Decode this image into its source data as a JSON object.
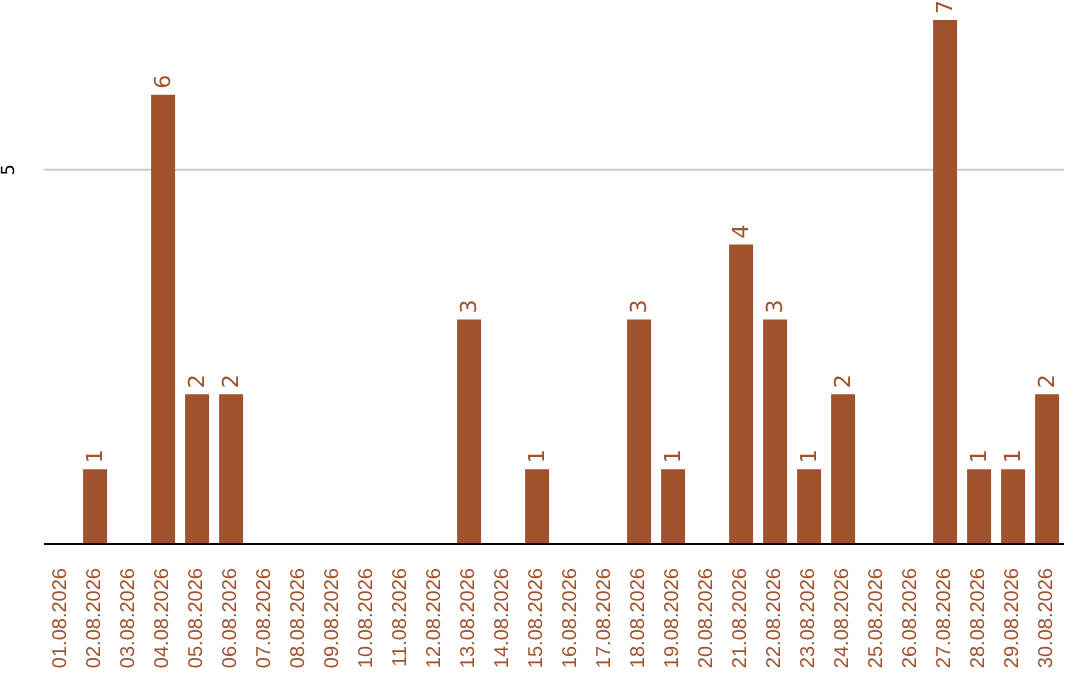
{
  "chart_data": {
    "type": "bar",
    "categories": [
      "01.08.2026",
      "02.08.2026",
      "03.08.2026",
      "04.08.2026",
      "05.08.2026",
      "06.08.2026",
      "07.08.2026",
      "08.08.2026",
      "09.08.2026",
      "10.08.2026",
      "11.08.2026",
      "12.08.2026",
      "13.08.2026",
      "14.08.2026",
      "15.08.2026",
      "16.08.2026",
      "17.08.2026",
      "18.08.2026",
      "19.08.2026",
      "20.08.2026",
      "21.08.2026",
      "22.08.2026",
      "23.08.2026",
      "24.08.2026",
      "25.08.2026",
      "26.08.2026",
      "27.08.2026",
      "28.08.2026",
      "29.08.2026",
      "30.08.2026"
    ],
    "values": [
      0,
      1,
      0,
      6,
      2,
      2,
      0,
      0,
      0,
      0,
      0,
      0,
      3,
      0,
      1,
      0,
      0,
      3,
      1,
      0,
      4,
      3,
      1,
      2,
      0,
      0,
      7,
      1,
      1,
      2
    ],
    "value_labels": [
      null,
      "1",
      null,
      "6",
      "2",
      "2",
      null,
      null,
      null,
      null,
      null,
      null,
      "3",
      null,
      "1",
      null,
      null,
      "3",
      "1",
      null,
      "4",
      "3",
      "1",
      "2",
      null,
      null,
      "7",
      "1",
      "1",
      "2"
    ],
    "color": "#a0522d",
    "ylim": [
      0,
      7
    ],
    "yticks": [
      5
    ],
    "grid": "y"
  }
}
